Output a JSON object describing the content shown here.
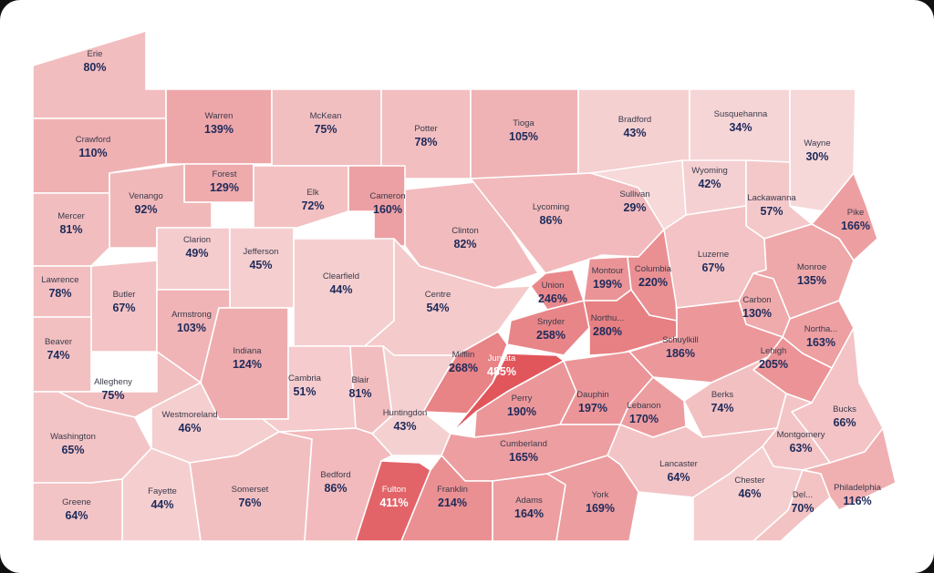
{
  "chart_data": {
    "type": "choropleth",
    "title": "",
    "color_scale": {
      "low": "#f7d9da",
      "high": "#e0565b"
    },
    "counties": [
      {
        "name": "Erie",
        "value": "80%"
      },
      {
        "name": "Warren",
        "value": "139%"
      },
      {
        "name": "McKean",
        "value": "75%"
      },
      {
        "name": "Potter",
        "value": "78%"
      },
      {
        "name": "Tioga",
        "value": "105%"
      },
      {
        "name": "Bradford",
        "value": "43%"
      },
      {
        "name": "Susquehanna",
        "value": "34%"
      },
      {
        "name": "Wayne",
        "value": "30%"
      },
      {
        "name": "Crawford",
        "value": "110%"
      },
      {
        "name": "Forest",
        "value": "129%"
      },
      {
        "name": "Elk",
        "value": "72%"
      },
      {
        "name": "Cameron",
        "value": "160%"
      },
      {
        "name": "Venango",
        "value": "92%"
      },
      {
        "name": "Mercer",
        "value": "81%"
      },
      {
        "name": "Clarion",
        "value": "49%"
      },
      {
        "name": "Jefferson",
        "value": "45%"
      },
      {
        "name": "Clinton",
        "value": "82%"
      },
      {
        "name": "Lycoming",
        "value": "86%"
      },
      {
        "name": "Sullivan",
        "value": "29%"
      },
      {
        "name": "Wyoming",
        "value": "42%"
      },
      {
        "name": "Lackawanna",
        "value": "57%"
      },
      {
        "name": "Pike",
        "value": "166%"
      },
      {
        "name": "Lawrence",
        "value": "78%"
      },
      {
        "name": "Butler",
        "value": "67%"
      },
      {
        "name": "Clearfield",
        "value": "44%"
      },
      {
        "name": "Centre",
        "value": "54%"
      },
      {
        "name": "Union",
        "value": "246%"
      },
      {
        "name": "Montour",
        "value": "199%"
      },
      {
        "name": "Columbia",
        "value": "220%"
      },
      {
        "name": "Luzerne",
        "value": "67%"
      },
      {
        "name": "Monroe",
        "value": "135%"
      },
      {
        "name": "Armstrong",
        "value": "103%"
      },
      {
        "name": "Beaver",
        "value": "74%"
      },
      {
        "name": "Indiana",
        "value": "124%"
      },
      {
        "name": "Snyder",
        "value": "258%"
      },
      {
        "name": "Northu...",
        "value": "280%"
      },
      {
        "name": "Carbon",
        "value": "130%"
      },
      {
        "name": "Northa...",
        "value": "163%"
      },
      {
        "name": "Schuylkill",
        "value": "186%"
      },
      {
        "name": "Mifflin",
        "value": "268%"
      },
      {
        "name": "Juniata",
        "value": "485%"
      },
      {
        "name": "Allegheny",
        "value": "75%"
      },
      {
        "name": "Cambria",
        "value": "51%"
      },
      {
        "name": "Blair",
        "value": "81%"
      },
      {
        "name": "Lehigh",
        "value": "205%"
      },
      {
        "name": "Berks",
        "value": "74%"
      },
      {
        "name": "Westmoreland",
        "value": "46%"
      },
      {
        "name": "Huntingdon",
        "value": "43%"
      },
      {
        "name": "Perry",
        "value": "190%"
      },
      {
        "name": "Dauphin",
        "value": "197%"
      },
      {
        "name": "Lebanon",
        "value": "170%"
      },
      {
        "name": "Bucks",
        "value": "66%"
      },
      {
        "name": "Washington",
        "value": "65%"
      },
      {
        "name": "Cumberland",
        "value": "165%"
      },
      {
        "name": "Montgomery",
        "value": "63%"
      },
      {
        "name": "Lancaster",
        "value": "64%"
      },
      {
        "name": "Somerset",
        "value": "76%"
      },
      {
        "name": "Bedford",
        "value": "86%"
      },
      {
        "name": "Fayette",
        "value": "44%"
      },
      {
        "name": "Greene",
        "value": "64%"
      },
      {
        "name": "Fulton",
        "value": "411%"
      },
      {
        "name": "Franklin",
        "value": "214%"
      },
      {
        "name": "Adams",
        "value": "164%"
      },
      {
        "name": "York",
        "value": "169%"
      },
      {
        "name": "Chester",
        "value": "46%"
      },
      {
        "name": "Del...",
        "value": "70%"
      },
      {
        "name": "Philadelphia",
        "value": "116%"
      }
    ]
  }
}
